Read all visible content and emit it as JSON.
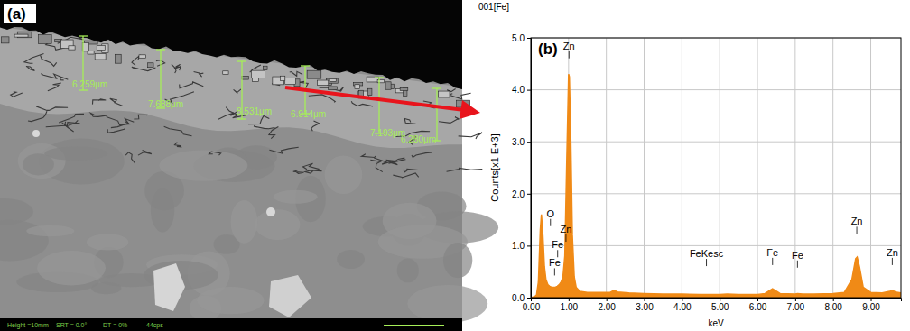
{
  "image_panel": {
    "label": "(a)",
    "measurements": [
      "6.259μm",
      "7.688μm",
      "8.531μm",
      "6.914μm",
      "7.193μm",
      "6.280μm"
    ],
    "status": [
      "Height =10mm",
      "SRT = 0.0°",
      "DT = 0%",
      "44cps"
    ]
  },
  "chart_data": {
    "type": "area",
    "panel_label": "(b)",
    "title": "001[Fe]",
    "y_label": "Counts[x1 E+3]",
    "x_label": "keV",
    "x": [
      0.0,
      0.1,
      0.15,
      0.2,
      0.25,
      0.28,
      0.32,
      0.36,
      0.4,
      0.45,
      0.5,
      0.55,
      0.6,
      0.65,
      0.7,
      0.75,
      0.8,
      0.85,
      0.9,
      0.95,
      1.0,
      1.02,
      1.06,
      1.1,
      1.15,
      1.2,
      1.3,
      1.5,
      1.8,
      2.1,
      2.2,
      2.3,
      2.6,
      3.0,
      3.5,
      4.0,
      4.5,
      5.0,
      5.2,
      5.5,
      6.0,
      6.2,
      6.35,
      6.4,
      6.45,
      6.6,
      7.0,
      7.06,
      7.2,
      7.5,
      8.0,
      8.3,
      8.5,
      8.6,
      8.64,
      8.7,
      8.8,
      9.0,
      9.3,
      9.5,
      9.57,
      9.65,
      9.8
    ],
    "series": [
      {
        "color": "#f08a16",
        "values": [
          0,
          0.02,
          0.05,
          0.3,
          1.3,
          1.6,
          1.2,
          0.6,
          0.35,
          0.25,
          0.22,
          0.2,
          0.2,
          0.2,
          0.22,
          0.25,
          0.3,
          0.4,
          0.8,
          2.6,
          4.3,
          4.25,
          3.0,
          1.2,
          0.4,
          0.2,
          0.12,
          0.1,
          0.1,
          0.1,
          0.14,
          0.11,
          0.09,
          0.08,
          0.07,
          0.07,
          0.06,
          0.06,
          0.07,
          0.06,
          0.06,
          0.08,
          0.15,
          0.17,
          0.15,
          0.08,
          0.07,
          0.08,
          0.07,
          0.07,
          0.08,
          0.1,
          0.35,
          0.75,
          0.78,
          0.6,
          0.2,
          0.1,
          0.09,
          0.12,
          0.14,
          0.11,
          0.09
        ]
      }
    ],
    "xlim": [
      0,
      9.8
    ],
    "xticks": [
      {
        "value": 0,
        "label": "0.00"
      },
      {
        "value": 1,
        "label": "1.00"
      },
      {
        "value": 2,
        "label": "2.00"
      },
      {
        "value": 3,
        "label": "3.00"
      },
      {
        "value": 4,
        "label": "4.00"
      },
      {
        "value": 5,
        "label": "5.00"
      },
      {
        "value": 6,
        "label": "6.00"
      },
      {
        "value": 7,
        "label": "7.00"
      },
      {
        "value": 8,
        "label": "8.00"
      },
      {
        "value": 9,
        "label": "9.00"
      }
    ],
    "ylim": [
      0,
      5.0
    ],
    "yticks": [
      {
        "value": 0,
        "label": "0.0"
      },
      {
        "value": 1,
        "label": "1.0"
      },
      {
        "value": 2,
        "label": "2.0"
      },
      {
        "value": 3,
        "label": "3.0"
      },
      {
        "value": 4,
        "label": "4.0"
      },
      {
        "value": 5,
        "label": "5.0"
      }
    ],
    "grid": true,
    "annotations": [
      {
        "text": "Zn",
        "x": 1.01,
        "y": 4.78
      },
      {
        "text": "O",
        "x": 0.52,
        "y": 1.55
      },
      {
        "text": "Zn",
        "x": 0.93,
        "y": 1.25
      },
      {
        "text": "Fe",
        "x": 0.71,
        "y": 0.95
      },
      {
        "text": "Fe",
        "x": 0.63,
        "y": 0.6
      },
      {
        "text": "FeKesc",
        "x": 4.65,
        "y": 0.78
      },
      {
        "text": "Fe",
        "x": 6.4,
        "y": 0.8
      },
      {
        "text": "Fe",
        "x": 7.06,
        "y": 0.75
      },
      {
        "text": "Zn",
        "x": 8.63,
        "y": 1.4
      },
      {
        "text": "Zn",
        "x": 9.57,
        "y": 0.8
      }
    ]
  }
}
